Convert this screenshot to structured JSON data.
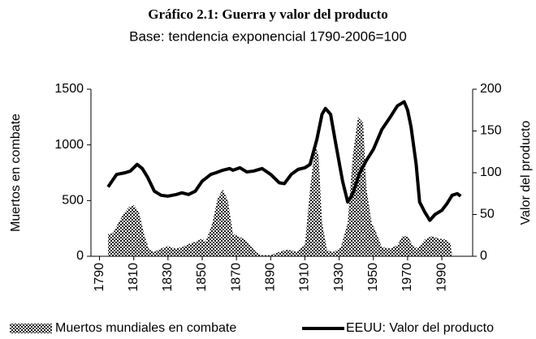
{
  "chart_data": {
    "type": "combo",
    "title": "Gráfico 2.1: Guerra y valor del producto",
    "subtitle": "Base: tendencia exponencial 1790-2006=100",
    "y_label": "Muertos en combate",
    "y2_label": "Valor del producto",
    "xlim": [
      1785,
      2008
    ],
    "xticks": [
      1790,
      1810,
      1830,
      1850,
      1870,
      1890,
      1910,
      1930,
      1950,
      1970,
      1990
    ],
    "ylim": [
      0,
      1500
    ],
    "yticks": [
      0,
      500,
      1000,
      1500
    ],
    "y2lim": [
      0,
      200
    ],
    "y2ticks": [
      0,
      50,
      100,
      150,
      200
    ],
    "series": [
      {
        "name": "Muertos mundiales en combate",
        "type": "area",
        "color": "#333333",
        "x": [
          1795,
          1798,
          1801,
          1804,
          1807,
          1810,
          1813,
          1816,
          1819,
          1822,
          1826,
          1830,
          1834,
          1838,
          1842,
          1846,
          1850,
          1852,
          1856,
          1859,
          1862,
          1865,
          1868,
          1871,
          1875,
          1879,
          1882,
          1885,
          1890,
          1895,
          1900,
          1905,
          1910,
          1913,
          1916,
          1918,
          1920,
          1923,
          1927,
          1931,
          1935,
          1938,
          1941,
          1944,
          1946,
          1949,
          1952,
          1955,
          1960,
          1964,
          1967,
          1970,
          1973,
          1976,
          1980,
          1984,
          1988,
          1992,
          1995,
          1996
        ],
        "values": [
          200,
          210,
          300,
          380,
          440,
          460,
          400,
          200,
          60,
          40,
          70,
          90,
          70,
          80,
          110,
          130,
          160,
          130,
          300,
          520,
          600,
          500,
          200,
          180,
          150,
          80,
          30,
          10,
          10,
          40,
          60,
          40,
          100,
          600,
          1000,
          900,
          300,
          50,
          40,
          80,
          300,
          900,
          1250,
          1200,
          600,
          300,
          200,
          80,
          70,
          100,
          180,
          180,
          100,
          70,
          150,
          180,
          160,
          150,
          120,
          0
        ]
      },
      {
        "name": "EEUU: Valor del producto",
        "type": "line",
        "axis": "y2",
        "color": "#000000",
        "x": [
          1795,
          1800,
          1805,
          1808,
          1812,
          1815,
          1818,
          1822,
          1826,
          1830,
          1835,
          1838,
          1842,
          1846,
          1850,
          1855,
          1858,
          1862,
          1866,
          1868,
          1872,
          1876,
          1880,
          1885,
          1890,
          1895,
          1898,
          1902,
          1906,
          1910,
          1913,
          1917,
          1920,
          1922,
          1925,
          1928,
          1932,
          1935,
          1938,
          1942,
          1946,
          1950,
          1955,
          1960,
          1964,
          1968,
          1970,
          1972,
          1975,
          1977,
          1980,
          1983,
          1986,
          1990,
          1993,
          1996,
          1999,
          2001
        ],
        "values": [
          83,
          98,
          100,
          102,
          110,
          105,
          95,
          78,
          73,
          72,
          74,
          76,
          74,
          78,
          90,
          98,
          100,
          103,
          105,
          103,
          106,
          101,
          102,
          105,
          98,
          88,
          87,
          98,
          104,
          106,
          110,
          140,
          170,
          177,
          170,
          135,
          90,
          65,
          75,
          100,
          115,
          128,
          152,
          167,
          180,
          185,
          175,
          155,
          110,
          65,
          53,
          43,
          50,
          55,
          63,
          73,
          75,
          72
        ]
      }
    ]
  }
}
